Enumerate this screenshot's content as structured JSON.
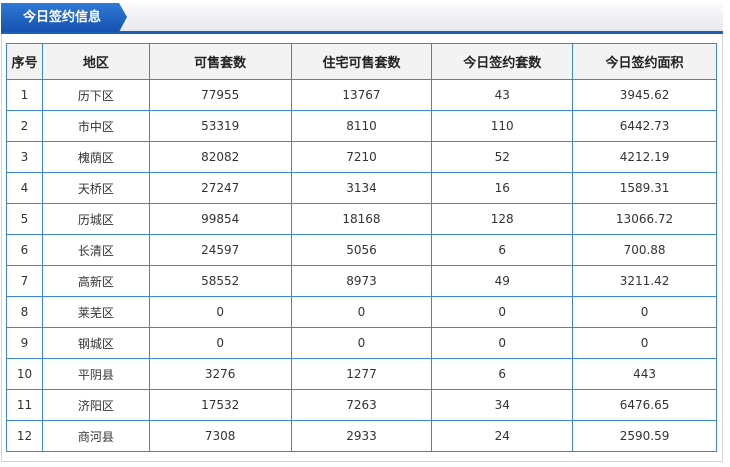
{
  "title": "今日签约信息",
  "columns": [
    "序号",
    "地区",
    "可售套数",
    "住宅可售套数",
    "今日签约套数",
    "今日签约面积"
  ],
  "rows": [
    [
      "1",
      "历下区",
      "77955",
      "13767",
      "43",
      "3945.62"
    ],
    [
      "2",
      "市中区",
      "53319",
      "8110",
      "110",
      "6442.73"
    ],
    [
      "3",
      "槐荫区",
      "82082",
      "7210",
      "52",
      "4212.19"
    ],
    [
      "4",
      "天桥区",
      "27247",
      "3134",
      "16",
      "1589.31"
    ],
    [
      "5",
      "历城区",
      "99854",
      "18168",
      "128",
      "13066.72"
    ],
    [
      "6",
      "长清区",
      "24597",
      "5056",
      "6",
      "700.88"
    ],
    [
      "7",
      "高新区",
      "58552",
      "8973",
      "49",
      "3211.42"
    ],
    [
      "8",
      "莱芜区",
      "0",
      "0",
      "0",
      "0"
    ],
    [
      "9",
      "钢城区",
      "0",
      "0",
      "0",
      "0"
    ],
    [
      "10",
      "平阴县",
      "3276",
      "1277",
      "6",
      "443"
    ],
    [
      "11",
      "济阳区",
      "17532",
      "7263",
      "34",
      "6476.65"
    ],
    [
      "12",
      "商河县",
      "7308",
      "2933",
      "24",
      "2590.59"
    ]
  ]
}
